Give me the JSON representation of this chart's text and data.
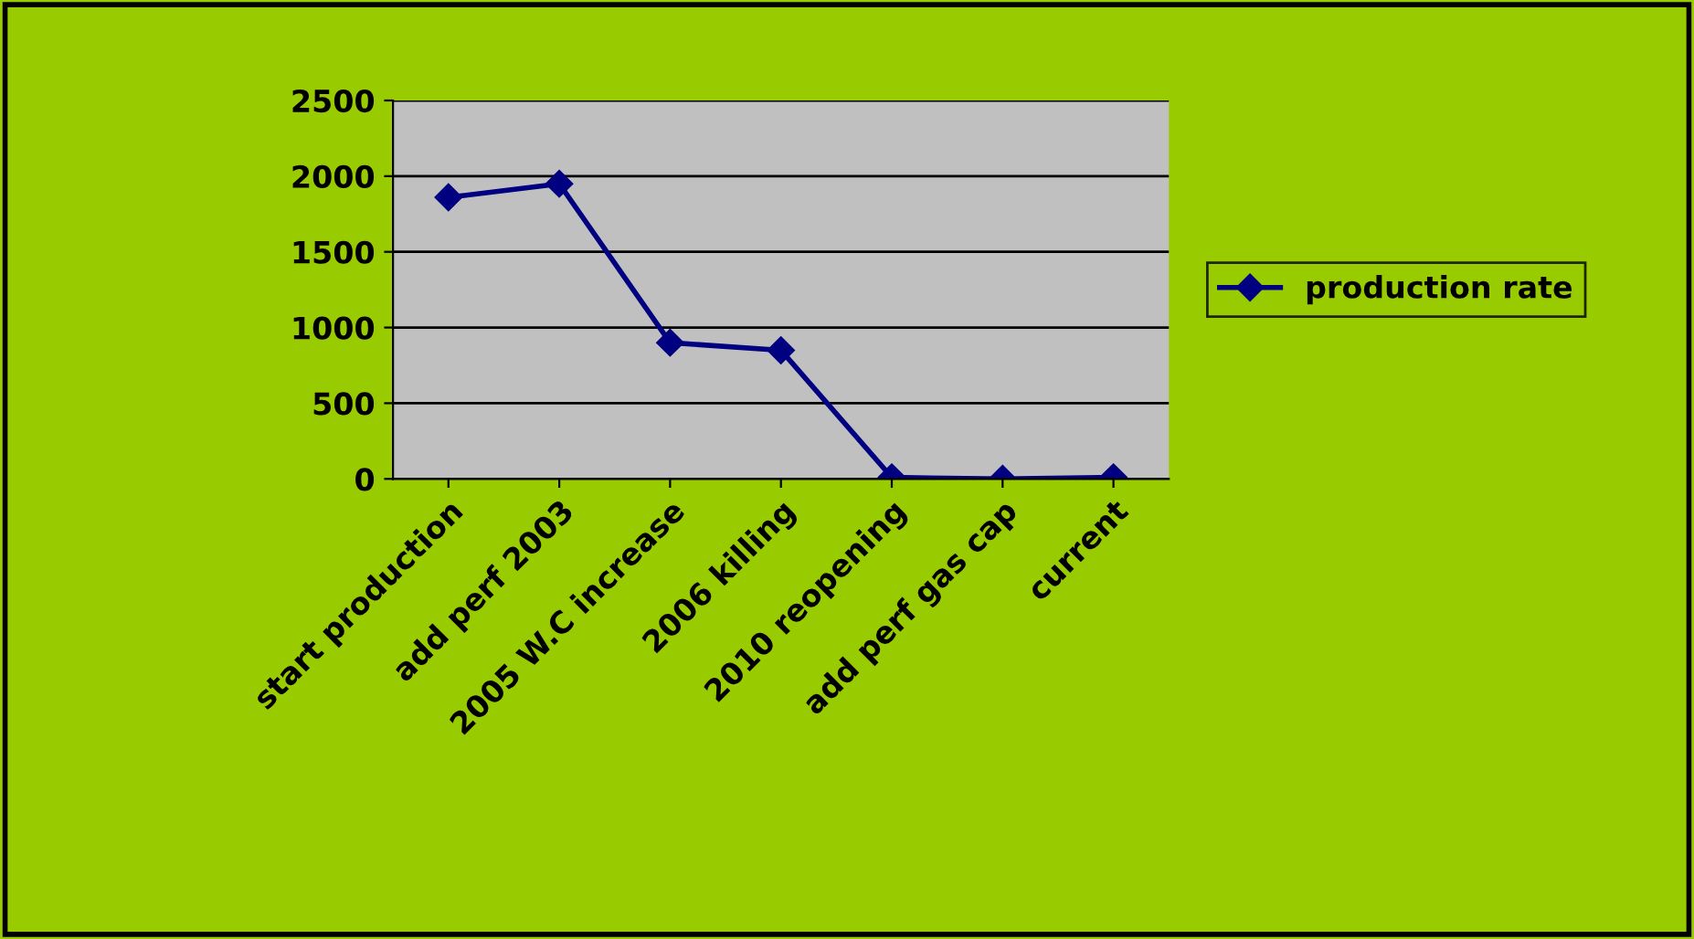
{
  "chart_data": {
    "type": "line",
    "categories": [
      "start production",
      "add perf 2003",
      "2005 W.C increase",
      "2006 killing",
      "2010 reopening",
      "add perf gas cap",
      "current"
    ],
    "series": [
      {
        "name": "production rate",
        "color": "#000080",
        "values": [
          1860,
          1950,
          900,
          850,
          10,
          0,
          10
        ]
      }
    ],
    "ylim": [
      0,
      2500
    ],
    "yticks": [
      0,
      500,
      1000,
      1500,
      2000,
      2500
    ],
    "grid": "y",
    "legend": "right",
    "marker": "diamond",
    "line_style": "solid"
  }
}
